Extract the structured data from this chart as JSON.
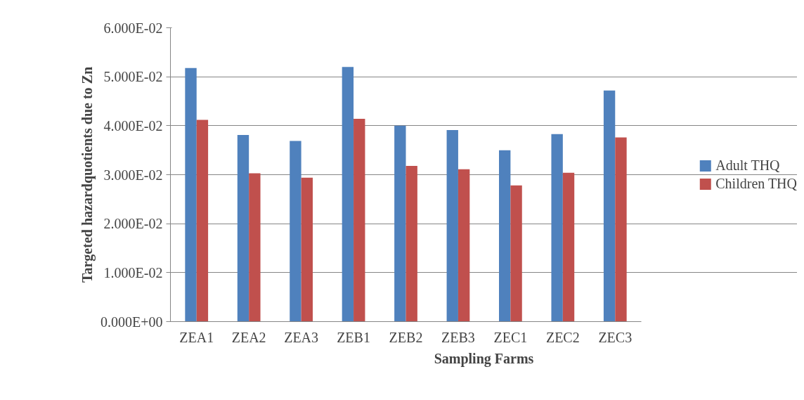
{
  "chart_data": {
    "type": "bar",
    "xlabel": "Sampling Farms",
    "ylabel": "Targeted hazardquotients due to Zn",
    "categories": [
      "ZEA1",
      "ZEA2",
      "ZEA3",
      "ZEB1",
      "ZEB2",
      "ZEB3",
      "ZEC1",
      "ZEC2",
      "ZEC3"
    ],
    "series": [
      {
        "name": "Adult THQ",
        "color": "#4f81bd",
        "values": [
          0.0518,
          0.0381,
          0.0369,
          0.052,
          0.04,
          0.0391,
          0.035,
          0.0383,
          0.0472
        ]
      },
      {
        "name": "Children THQ",
        "color": "#c0504d",
        "values": [
          0.0412,
          0.0303,
          0.0294,
          0.0414,
          0.0318,
          0.0311,
          0.0278,
          0.0304,
          0.0376
        ]
      }
    ],
    "ylim": [
      0,
      0.06
    ],
    "yticks": [
      {
        "value": 0,
        "label": "0.000E+00"
      },
      {
        "value": 0.01,
        "label": "1.000E-02"
      },
      {
        "value": 0.02,
        "label": "2.000E-02"
      },
      {
        "value": 0.03,
        "label": "3.000E-02"
      },
      {
        "value": 0.04,
        "label": "4.000E-02"
      },
      {
        "value": 0.05,
        "label": "5.000E-02"
      },
      {
        "value": 0.06,
        "label": "6.000E-02"
      }
    ],
    "grid": "y",
    "legend": "right"
  }
}
